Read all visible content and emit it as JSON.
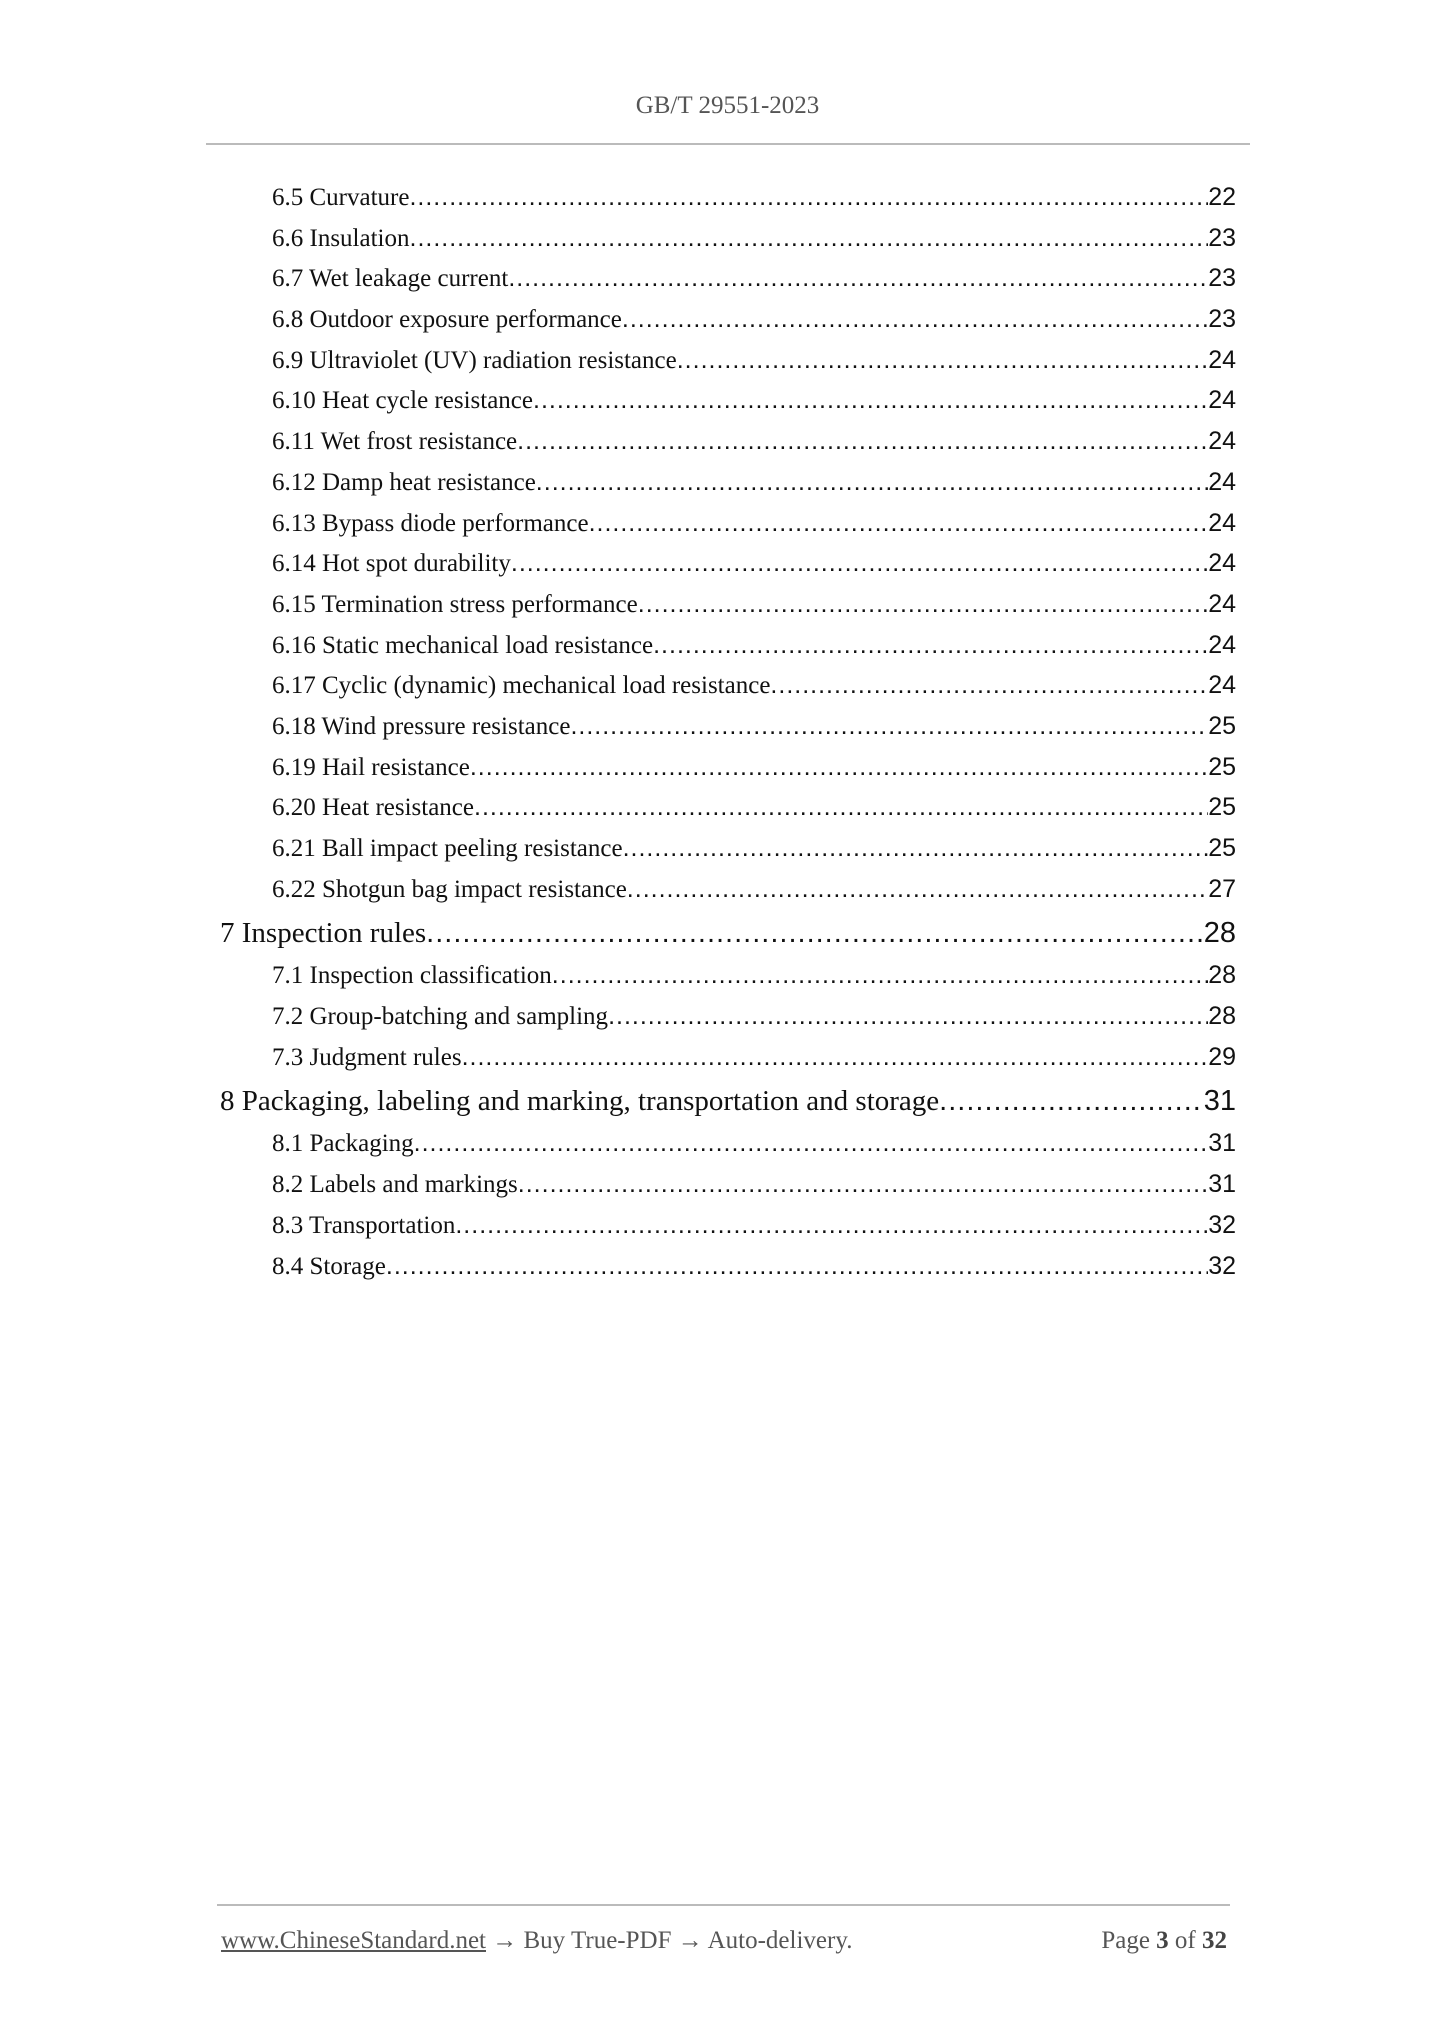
{
  "header": {
    "title": "GB/T 29551-2023"
  },
  "toc": [
    {
      "level": 2,
      "label": "6.5 Curvature",
      "page": "22"
    },
    {
      "level": 2,
      "label": "6.6 Insulation",
      "page": "23"
    },
    {
      "level": 2,
      "label": "6.7 Wet leakage current ",
      "page": "23"
    },
    {
      "level": 2,
      "label": "6.8 Outdoor exposure performance ",
      "page": "23"
    },
    {
      "level": 2,
      "label": "6.9 Ultraviolet (UV) radiation resistance ",
      "page": "24"
    },
    {
      "level": 2,
      "label": "6.10 Heat cycle resistance ",
      "page": "24"
    },
    {
      "level": 2,
      "label": "6.11 Wet frost resistance ",
      "page": "24"
    },
    {
      "level": 2,
      "label": "6.12 Damp heat resistance ",
      "page": "24"
    },
    {
      "level": 2,
      "label": "6.13 Bypass diode performance ",
      "page": "24"
    },
    {
      "level": 2,
      "label": "6.14 Hot spot durability ",
      "page": "24"
    },
    {
      "level": 2,
      "label": "6.15 Termination stress performance ",
      "page": "24"
    },
    {
      "level": 2,
      "label": "6.16 Static mechanical load resistance ",
      "page": "24"
    },
    {
      "level": 2,
      "label": "6.17 Cyclic (dynamic) mechanical load resistance ",
      "page": "24"
    },
    {
      "level": 2,
      "label": "6.18 Wind pressure resistance ",
      "page": "25"
    },
    {
      "level": 2,
      "label": "6.19 Hail resistance ",
      "page": "25"
    },
    {
      "level": 2,
      "label": "6.20 Heat resistance ",
      "page": "25"
    },
    {
      "level": 2,
      "label": "6.21 Ball impact peeling resistance ",
      "page": "25"
    },
    {
      "level": 2,
      "label": "6.22 Shotgun bag impact resistance ",
      "page": "27"
    },
    {
      "level": 1,
      "label": "7 Inspection rules ",
      "page": "28"
    },
    {
      "level": 2,
      "label": "7.1 Inspection classification ",
      "page": "28"
    },
    {
      "level": 2,
      "label": "7.2 Group-batching and sampling ",
      "page": "28"
    },
    {
      "level": 2,
      "label": "7.3 Judgment rules ",
      "page": "29"
    },
    {
      "level": 1,
      "label": "8 Packaging, labeling and marking, transportation and storage ",
      "page": "31"
    },
    {
      "level": 2,
      "label": "8.1 Packaging ",
      "page": "31"
    },
    {
      "level": 2,
      "label": "8.2 Labels and markings ",
      "page": "31"
    },
    {
      "level": 2,
      "label": "8.3 Transportation ",
      "page": "32"
    },
    {
      "level": 2,
      "label": "8.4 Storage ",
      "page": "32"
    }
  ],
  "footer": {
    "link": "www.ChineseStandard.net",
    "tagline": " → Buy True-PDF → Auto-delivery.",
    "page_prefix": "Page ",
    "page_current": "3",
    "page_of": " of ",
    "page_total": "32"
  }
}
